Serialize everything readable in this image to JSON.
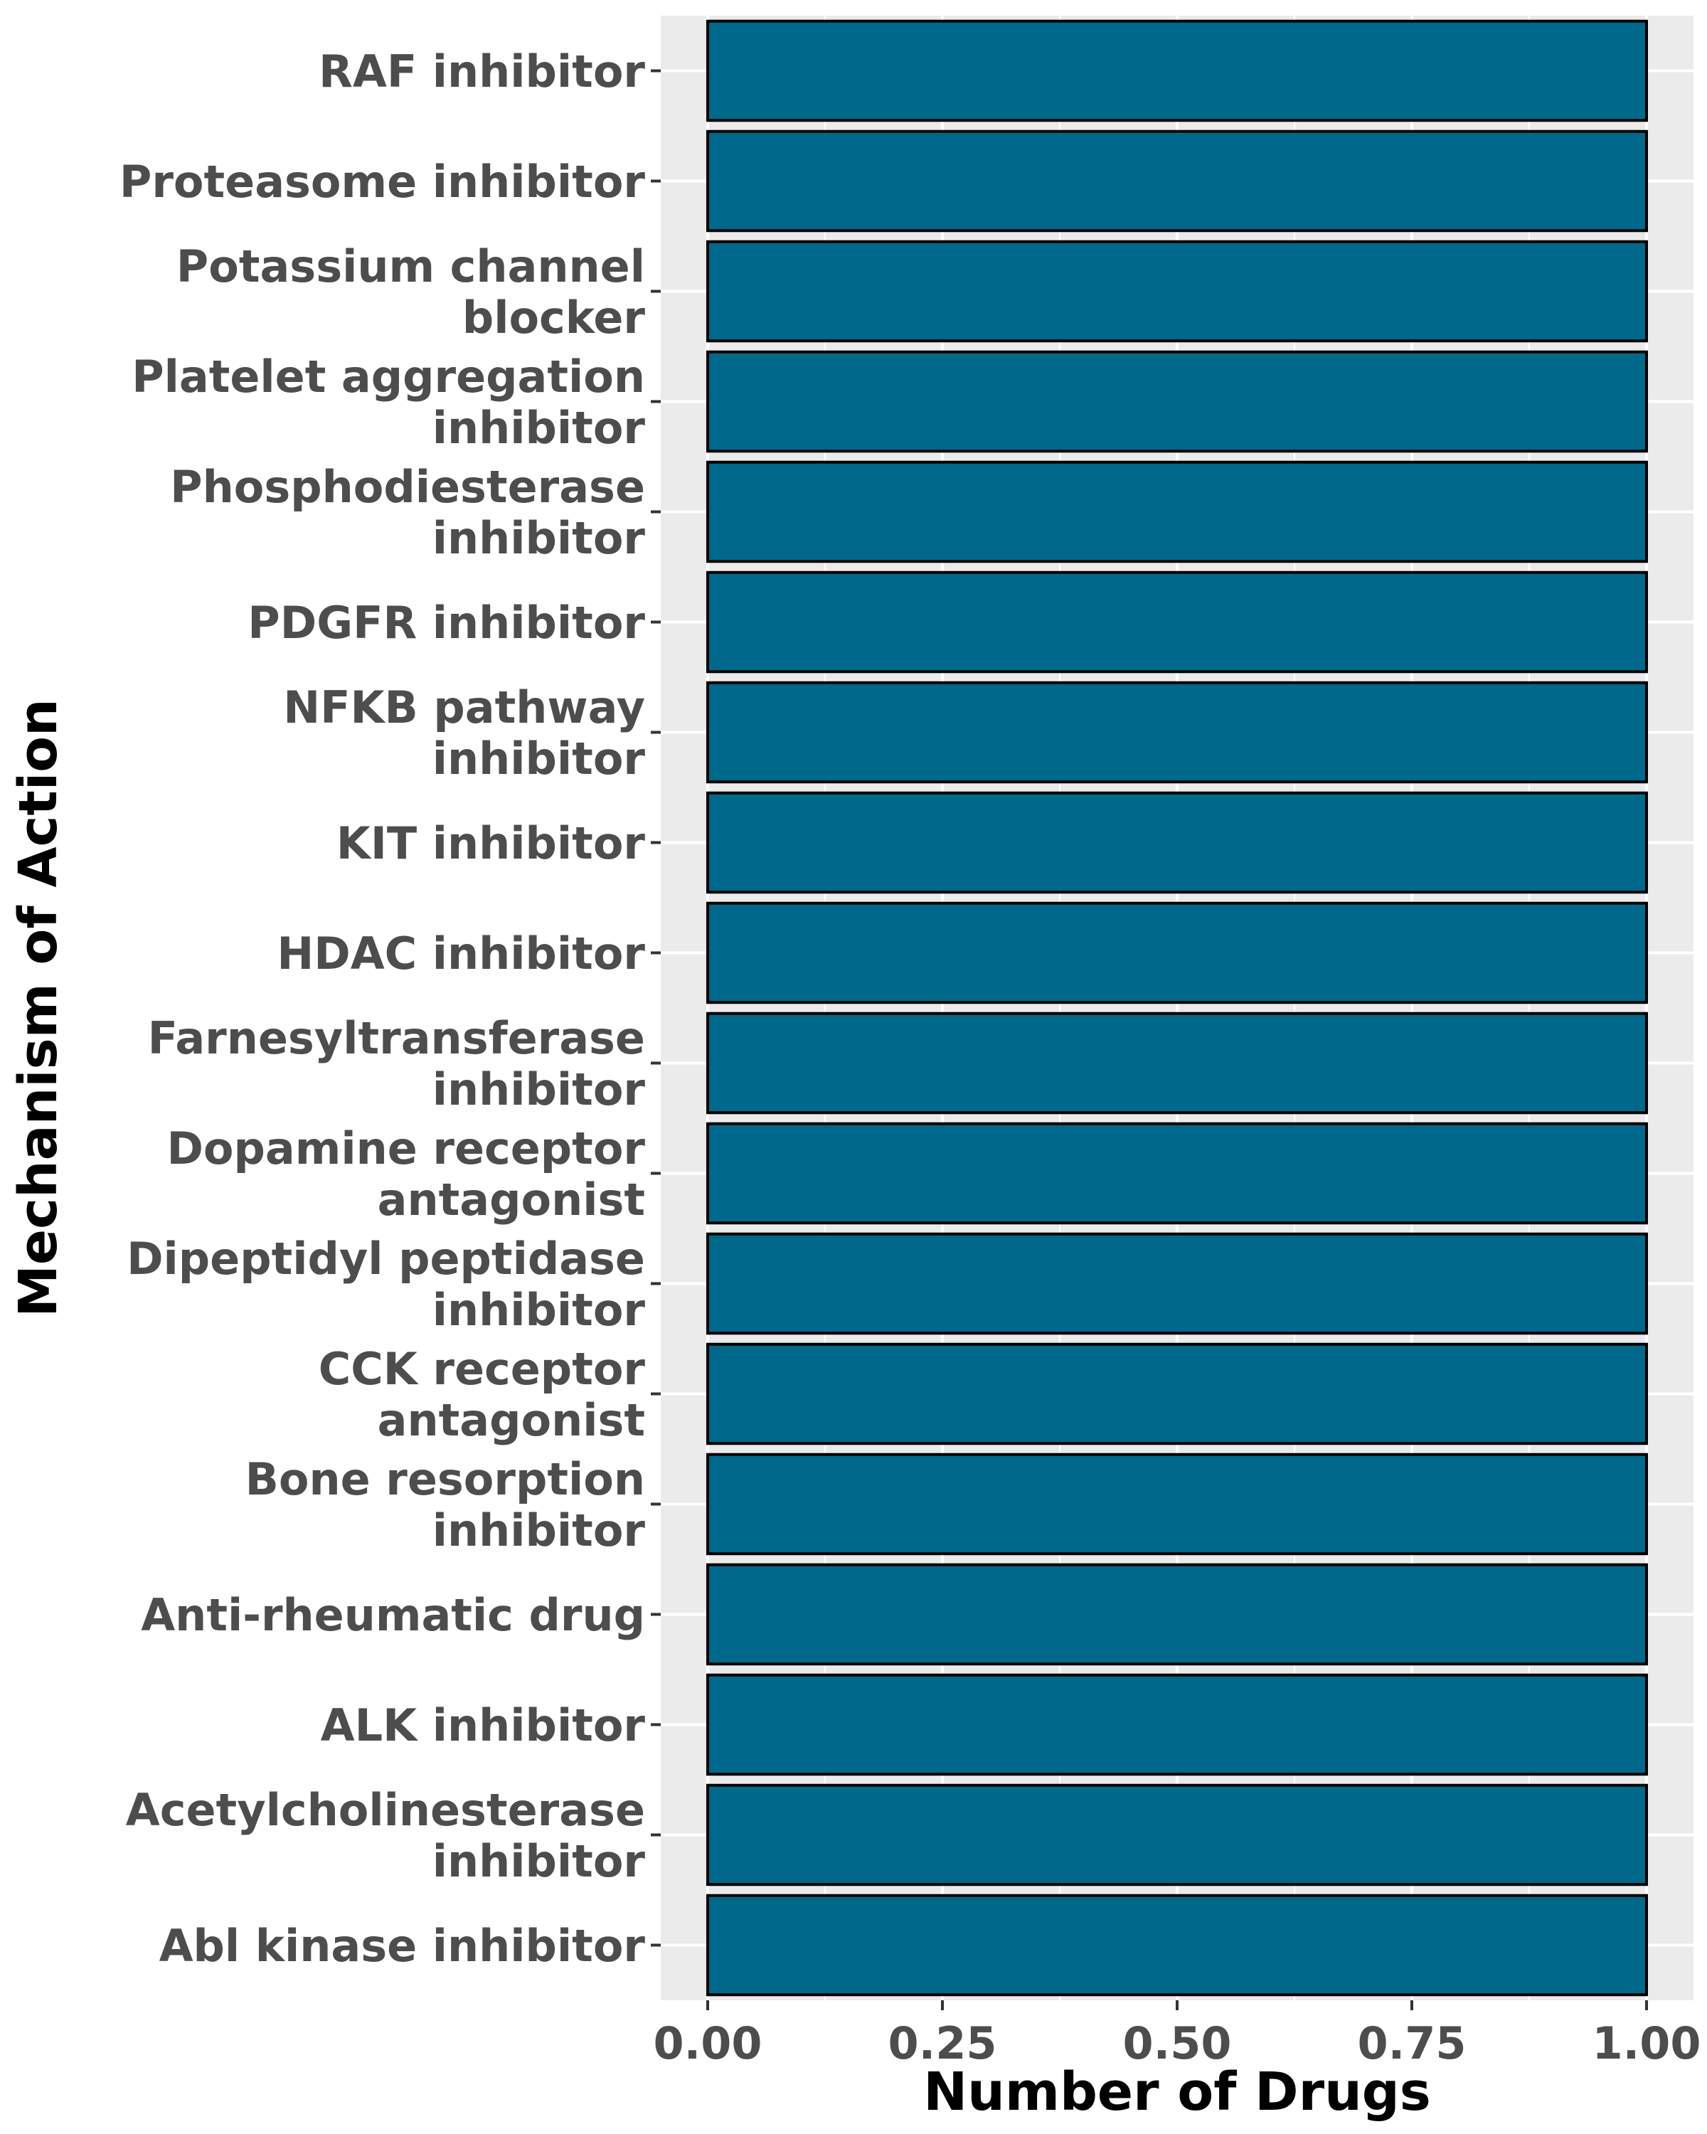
{
  "chart_data": {
    "type": "bar",
    "orientation": "horizontal",
    "categories": [
      [
        "RAF inhibitor"
      ],
      [
        "Proteasome inhibitor"
      ],
      [
        "Potassium channel",
        "blocker"
      ],
      [
        "Platelet aggregation",
        "inhibitor"
      ],
      [
        "Phosphodiesterase",
        "inhibitor"
      ],
      [
        "PDGFR inhibitor"
      ],
      [
        "NFKB pathway",
        "inhibitor"
      ],
      [
        "KIT inhibitor"
      ],
      [
        "HDAC inhibitor"
      ],
      [
        "Farnesyltransferase",
        "inhibitor"
      ],
      [
        "Dopamine receptor",
        "antagonist"
      ],
      [
        "Dipeptidyl peptidase",
        "inhibitor"
      ],
      [
        "CCK receptor",
        "antagonist"
      ],
      [
        "Bone resorption",
        "inhibitor"
      ],
      [
        "Anti-rheumatic drug"
      ],
      [
        "ALK inhibitor"
      ],
      [
        "Acetylcholinesterase",
        "inhibitor"
      ],
      [
        "Abl kinase inhibitor"
      ]
    ],
    "values": [
      1,
      1,
      1,
      1,
      1,
      1,
      1,
      1,
      1,
      1,
      1,
      1,
      1,
      1,
      1,
      1,
      1,
      1
    ],
    "xlabel": "Number of Drugs",
    "ylabel": "Mechanism of Action",
    "xlim": [
      -0.05,
      1.05
    ],
    "x_ticks": [
      "0.00",
      "0.25",
      "0.50",
      "0.75",
      "1.00"
    ],
    "x_tick_values": [
      0,
      0.25,
      0.5,
      0.75,
      1.0
    ],
    "grid": true,
    "bar_color": "#00688b",
    "bar_edge_color": "#000000",
    "panel_background": "#ebebeb",
    "grid_color": "#ffffff"
  }
}
